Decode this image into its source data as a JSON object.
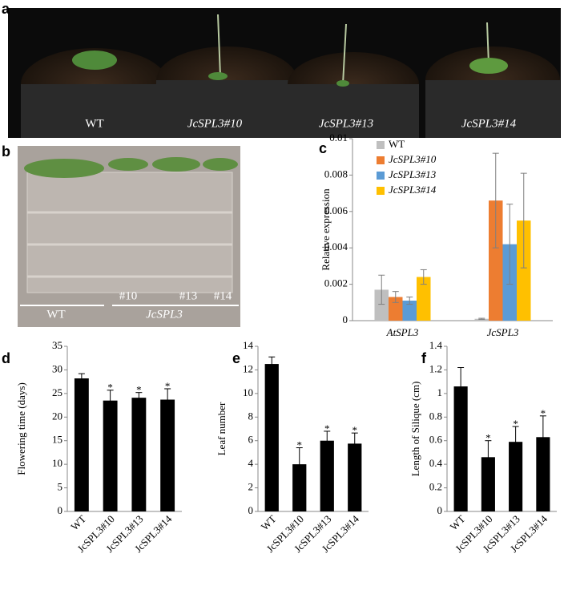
{
  "panels": {
    "a": {
      "label": "a",
      "photo_labels": [
        "WT",
        "JcSPL3#10",
        "JcSPL3#13",
        "JcSPL3#14"
      ]
    },
    "b": {
      "label": "b",
      "photo_labels": [
        "#10",
        "#13",
        "#14",
        "WT",
        "JcSPL3"
      ]
    }
  },
  "chart_data": [
    {
      "type": "grouped-bar",
      "panel_label": "c",
      "ylabel": "Relative expression",
      "categories": [
        "AtSPL3",
        "JcSPL3"
      ],
      "series": [
        {
          "name": "WT",
          "color": "#bfbfbf",
          "values": [
            0.0017,
            0.0001
          ],
          "errors": [
            0.0008,
            3e-05
          ]
        },
        {
          "name": "JcSPL3#10",
          "color": "#ed7d31",
          "values": [
            0.0013,
            0.0066
          ],
          "errors": [
            0.0003,
            0.0026
          ]
        },
        {
          "name": "JcSPL3#13",
          "color": "#5b9bd5",
          "values": [
            0.0011,
            0.0042
          ],
          "errors": [
            0.0002,
            0.0022
          ]
        },
        {
          "name": "JcSPL3#14",
          "color": "#ffc000",
          "values": [
            0.0024,
            0.0055
          ],
          "errors": [
            0.0004,
            0.0026
          ]
        }
      ],
      "ylim": [
        0,
        0.01
      ],
      "yticks": [
        0,
        0.002,
        0.004,
        0.006,
        0.008,
        0.01
      ]
    },
    {
      "type": "bar",
      "panel_label": "d",
      "ylabel": "Flowering time (days)",
      "categories": [
        "WT",
        "JcSPL3#10",
        "JcSPL3#13",
        "JcSPL3#14"
      ],
      "values": [
        28.2,
        23.5,
        24.1,
        23.7
      ],
      "errors": [
        1,
        2.2,
        1.1,
        2.3
      ],
      "color": "#000000",
      "annotations": [
        {
          "index": 1,
          "text": "*"
        },
        {
          "index": 2,
          "text": "*"
        },
        {
          "index": 3,
          "text": "*"
        }
      ],
      "ylim": [
        0,
        35
      ],
      "yticks": [
        0,
        5,
        10,
        15,
        20,
        25,
        30,
        35
      ]
    },
    {
      "type": "bar",
      "panel_label": "e",
      "ylabel": "Leaf number",
      "categories": [
        "WT",
        "JcSPL3#10",
        "JcSPL3#13",
        "JcSPL3#14"
      ],
      "values": [
        12.5,
        4,
        6,
        5.75
      ],
      "errors": [
        0.6,
        1.4,
        0.8,
        0.9
      ],
      "color": "#000000",
      "annotations": [
        {
          "index": 1,
          "text": "*"
        },
        {
          "index": 2,
          "text": "*"
        },
        {
          "index": 3,
          "text": "*"
        }
      ],
      "ylim": [
        0,
        14
      ],
      "yticks": [
        0,
        2,
        4,
        6,
        8,
        10,
        12,
        14
      ]
    },
    {
      "type": "bar",
      "panel_label": "f",
      "ylabel": "Length of Silique (cm)",
      "categories": [
        "WT",
        "JcSPL3#10",
        "JcSPL3#13",
        "JcSPL3#14"
      ],
      "values": [
        1.06,
        0.46,
        0.59,
        0.63
      ],
      "errors": [
        0.16,
        0.14,
        0.13,
        0.18
      ],
      "color": "#000000",
      "annotations": [
        {
          "index": 1,
          "text": "*"
        },
        {
          "index": 2,
          "text": "*"
        },
        {
          "index": 3,
          "text": "*"
        }
      ],
      "ylim": [
        0,
        1.4
      ],
      "yticks": [
        0,
        0.2,
        0.4,
        0.6,
        0.8,
        1,
        1.2,
        1.4
      ]
    }
  ]
}
